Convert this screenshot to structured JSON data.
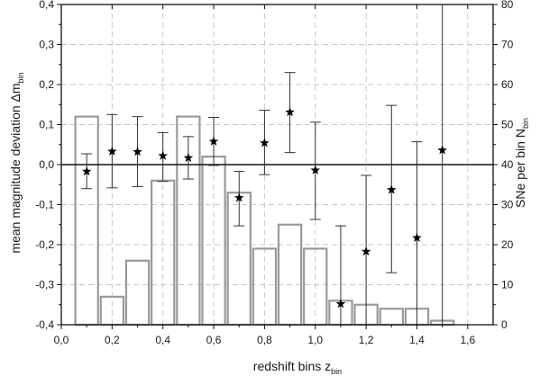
{
  "chart_data": {
    "type": "bar",
    "title": "",
    "grid": true,
    "x_axis": {
      "label": "redshift bins z",
      "label_sub": "bin",
      "range": [
        0.0,
        1.7
      ],
      "ticks": [
        0.0,
        0.2,
        0.4,
        0.6,
        0.8,
        1.0,
        1.2,
        1.4,
        1.6
      ],
      "tick_labels": [
        "0,0",
        "0,2",
        "0,4",
        "0,6",
        "0,8",
        "1,0",
        "1,2",
        "1,4",
        "1,6"
      ]
    },
    "y_left_axis": {
      "label": "mean magnitude deviation Δm",
      "label_sub": "bin",
      "range": [
        -0.4,
        0.4
      ],
      "ticks": [
        -0.4,
        -0.3,
        -0.2,
        -0.1,
        0.0,
        0.1,
        0.2,
        0.3,
        0.4
      ],
      "tick_labels": [
        "-0,4",
        "-0,3",
        "-0,2",
        "-0,1",
        "0,0",
        "0,1",
        "0,2",
        "0,3",
        "0,4"
      ]
    },
    "y_right_axis": {
      "label": "SNe per bin N",
      "label_sub": "bin",
      "range": [
        0,
        80
      ],
      "ticks": [
        0,
        10,
        20,
        30,
        40,
        50,
        60,
        70,
        80
      ],
      "tick_labels": [
        "0",
        "10",
        "20",
        "30",
        "40",
        "50",
        "60",
        "70",
        "80"
      ]
    },
    "bars": {
      "name": "SNe per bin",
      "axis": "right",
      "bin_width": 0.1,
      "x": [
        0.1,
        0.2,
        0.3,
        0.4,
        0.5,
        0.6,
        0.7,
        0.8,
        0.9,
        1.0,
        1.1,
        1.2,
        1.3,
        1.4,
        1.5
      ],
      "values": [
        52,
        7,
        16,
        36,
        52,
        42,
        33,
        19,
        25,
        19,
        6,
        5,
        4,
        4,
        1
      ]
    },
    "points": {
      "name": "mean magnitude deviation",
      "axis": "left",
      "marker": "star",
      "x": [
        0.1,
        0.2,
        0.3,
        0.4,
        0.5,
        0.6,
        0.7,
        0.8,
        0.9,
        1.0,
        1.1,
        1.2,
        1.3,
        1.4,
        1.5
      ],
      "y": [
        -0.017,
        0.033,
        0.032,
        0.022,
        0.017,
        0.058,
        -0.083,
        0.054,
        0.131,
        -0.014,
        -0.348,
        -0.217,
        -0.063,
        -0.183,
        0.036
      ],
      "err_low": [
        -0.06,
        -0.058,
        -0.055,
        -0.042,
        -0.036,
        -0.002,
        -0.153,
        -0.025,
        0.03,
        -0.137,
        -0.4,
        -0.4,
        -0.27,
        -0.4,
        -0.4
      ],
      "err_high": [
        0.027,
        0.125,
        0.12,
        0.08,
        0.07,
        0.118,
        -0.017,
        0.136,
        0.23,
        0.106,
        -0.153,
        -0.027,
        0.148,
        0.057,
        0.4
      ]
    },
    "reference_line": {
      "axis": "left",
      "y": 0.0
    }
  }
}
